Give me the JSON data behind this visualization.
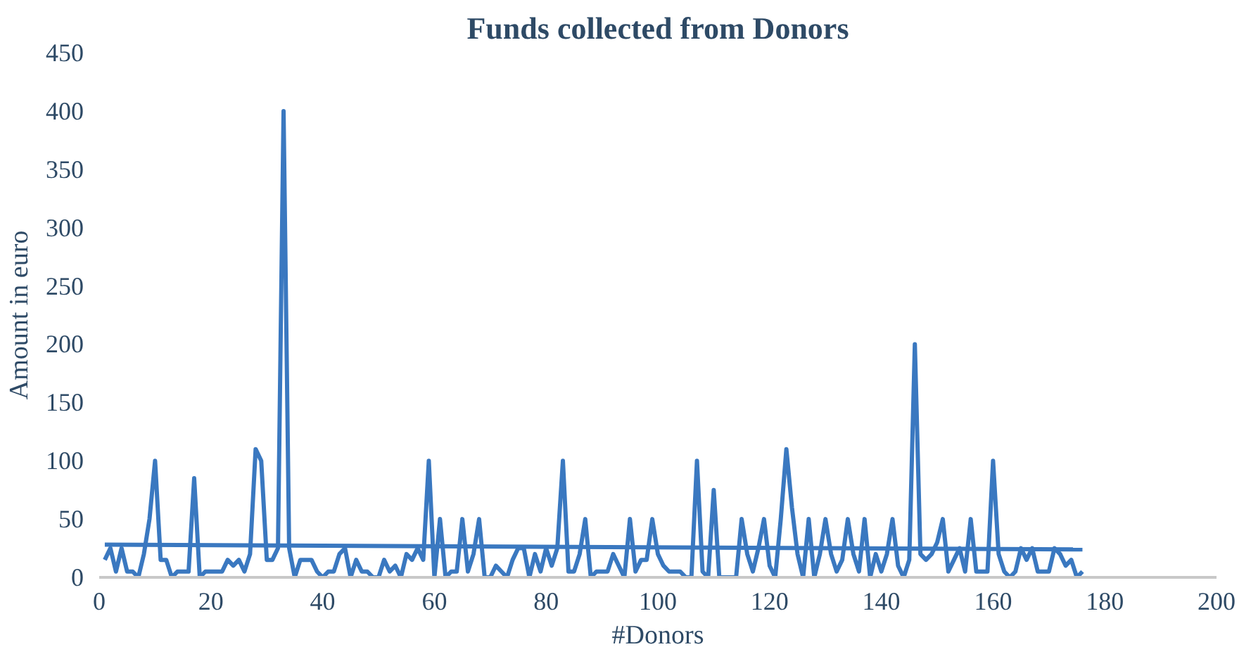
{
  "chart_data": {
    "type": "line",
    "title": "Funds collected from Donors",
    "xlabel": "#Donors",
    "ylabel": "Amount in euro",
    "xlim": [
      0,
      200
    ],
    "xticks": [
      0,
      20,
      40,
      60,
      80,
      100,
      120,
      140,
      160,
      180,
      200
    ],
    "ylim": [
      0,
      450
    ],
    "yticks": [
      0,
      50,
      100,
      150,
      200,
      250,
      300,
      350,
      400,
      450
    ],
    "grid": false,
    "series": [
      {
        "color": "#3a78c0",
        "x": [
          1,
          2,
          3,
          4,
          5,
          6,
          7,
          8,
          9,
          10,
          11,
          12,
          13,
          14,
          15,
          16,
          17,
          18,
          19,
          20,
          21,
          22,
          23,
          24,
          25,
          26,
          27,
          28,
          29,
          30,
          31,
          32,
          33,
          34,
          35,
          36,
          37,
          38,
          39,
          40,
          41,
          42,
          43,
          44,
          45,
          46,
          47,
          48,
          49,
          50,
          51,
          52,
          53,
          54,
          55,
          56,
          57,
          58,
          59,
          60,
          61,
          62,
          63,
          64,
          65,
          66,
          67,
          68,
          69,
          70,
          71,
          72,
          73,
          74,
          75,
          76,
          77,
          78,
          79,
          80,
          81,
          82,
          83,
          84,
          85,
          86,
          87,
          88,
          89,
          90,
          91,
          92,
          93,
          94,
          95,
          96,
          97,
          98,
          99,
          100,
          101,
          102,
          103,
          104,
          105,
          106,
          107,
          108,
          109,
          110,
          111,
          112,
          113,
          114,
          115,
          116,
          117,
          118,
          119,
          120,
          121,
          122,
          123,
          124,
          125,
          126,
          127,
          128,
          129,
          130,
          131,
          132,
          133,
          134,
          135,
          136,
          137,
          138,
          139,
          140,
          141,
          142,
          143,
          144,
          145,
          146,
          147,
          148,
          149,
          150,
          151,
          152,
          153,
          154,
          155,
          156,
          157,
          158,
          159,
          160,
          161,
          162,
          163,
          164,
          165,
          166,
          167,
          168,
          169,
          170,
          171,
          172,
          173,
          174,
          175,
          176
        ],
        "values": [
          15,
          25,
          5,
          25,
          5,
          5,
          0,
          20,
          50,
          100,
          15,
          15,
          0,
          5,
          5,
          5,
          85,
          0,
          5,
          5,
          5,
          5,
          15,
          10,
          15,
          5,
          20,
          110,
          100,
          15,
          15,
          25,
          400,
          25,
          0,
          15,
          15,
          15,
          5,
          0,
          5,
          5,
          20,
          25,
          0,
          15,
          5,
          5,
          0,
          0,
          15,
          5,
          10,
          0,
          20,
          15,
          25,
          15,
          100,
          0,
          50,
          0,
          5,
          5,
          50,
          5,
          20,
          50,
          0,
          0,
          10,
          5,
          0,
          15,
          25,
          25,
          0,
          20,
          5,
          25,
          10,
          25,
          100,
          5,
          5,
          20,
          50,
          0,
          5,
          5,
          5,
          20,
          10,
          0,
          50,
          5,
          15,
          15,
          50,
          20,
          10,
          5,
          5,
          5,
          0,
          0,
          100,
          5,
          0,
          75,
          0,
          0,
          0,
          0,
          50,
          20,
          5,
          25,
          50,
          10,
          0,
          50,
          110,
          60,
          20,
          0,
          50,
          0,
          20,
          50,
          20,
          5,
          15,
          50,
          20,
          5,
          50,
          0,
          20,
          5,
          20,
          50,
          10,
          0,
          15,
          200,
          20,
          15,
          20,
          30,
          50,
          5,
          15,
          25,
          5,
          50,
          5,
          5,
          5,
          100,
          20,
          5,
          0,
          5,
          25,
          15,
          25,
          5,
          5,
          5,
          25,
          20,
          10,
          15,
          0,
          5
        ]
      },
      {
        "type": "line",
        "color": "#3a78c0",
        "x": [
          1,
          176
        ],
        "values": [
          28,
          24
        ]
      }
    ]
  }
}
